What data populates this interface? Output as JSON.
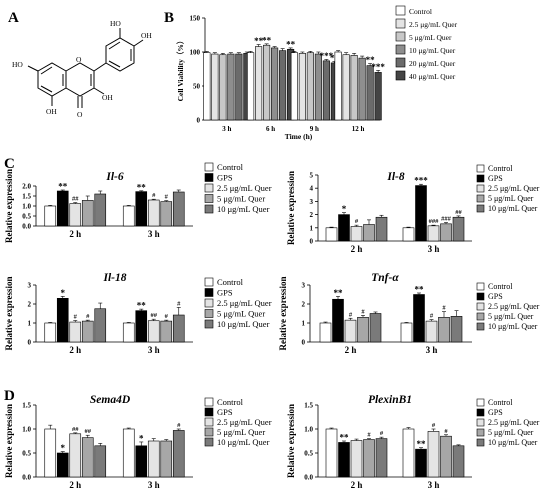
{
  "panel_labels": [
    "A",
    "B",
    "C",
    "D"
  ],
  "structure": {
    "atom_labels": [
      "HO",
      "OH",
      "HO",
      "O",
      "OH",
      "OH",
      "O"
    ]
  },
  "colors": {
    "control": "#ffffff",
    "gps": "#000000",
    "q25": "#e4e4e4",
    "q5": "#c8c8c8",
    "q10": "#8e8e8e",
    "q20": "#6b6b6b",
    "q40": "#444444",
    "q5b": "#a7a7a7",
    "q10b": "#7a7a7a"
  },
  "chart_data": [
    {
      "id": "B",
      "type": "bar",
      "title": "",
      "xlabel": "Time (h)",
      "ylabel": "Cell Viability（%）",
      "ylim": [
        0,
        150
      ],
      "yticks": [
        "0",
        "50",
        "100",
        "150"
      ],
      "categories": [
        "3 h",
        "6 h",
        "9 h",
        "12 h"
      ],
      "series": [
        {
          "name": "Control",
          "color": "control",
          "values": [
            99,
            99,
            99,
            100
          ],
          "errors": [
            2,
            2,
            2,
            2
          ],
          "marks": [
            "",
            "",
            "",
            ""
          ]
        },
        {
          "name": "2.5 μg/mL Quer",
          "color": "q25",
          "values": [
            97,
            108,
            98,
            96
          ],
          "errors": [
            2,
            3,
            2,
            3
          ],
          "marks": [
            "",
            "**",
            "",
            ""
          ]
        },
        {
          "name": "5 μg/mL Quer",
          "color": "q5",
          "values": [
            96,
            110,
            99,
            95
          ],
          "errors": [
            2,
            2,
            2,
            3
          ],
          "marks": [
            "",
            "**",
            "",
            ""
          ]
        },
        {
          "name": "10 μg/mL Quer",
          "color": "q10",
          "values": [
            97,
            106,
            97,
            91
          ],
          "errors": [
            2,
            2,
            3,
            3
          ],
          "marks": [
            "",
            "",
            "",
            ""
          ]
        },
        {
          "name": "20 μg/mL Quer",
          "color": "q20",
          "values": [
            97,
            102,
            87,
            80
          ],
          "errors": [
            2,
            3,
            2,
            3
          ],
          "marks": [
            "",
            "",
            "***",
            "**"
          ]
        },
        {
          "name": "40 μg/mL Quer",
          "color": "q40",
          "values": [
            98,
            104,
            84,
            70
          ],
          "errors": [
            2,
            2,
            2,
            3
          ],
          "marks": [
            "",
            "**",
            "**",
            "***"
          ]
        }
      ],
      "legend": [
        "Control",
        "2.5 μg/mL Quer",
        "5 μg/mL Quer",
        "10 μg/mL Quer",
        "20 μg/mL Quer",
        "40 μg/mL Quer"
      ]
    },
    {
      "id": "C1",
      "type": "bar",
      "title": "Il-6",
      "ylabel": "Relative expression",
      "ylim": [
        0,
        2.0
      ],
      "yticks": [
        "0.0",
        "0.5",
        "1.0",
        "1.5",
        "2.0"
      ],
      "categories": [
        "2 h",
        "3 h"
      ],
      "series": [
        {
          "name": "Control",
          "color": "control",
          "values": [
            1.0,
            1.0
          ],
          "errors": [
            0.03,
            0.03
          ],
          "marks": [
            "",
            ""
          ]
        },
        {
          "name": "GPS",
          "color": "gps",
          "values": [
            1.75,
            1.72
          ],
          "errors": [
            0.05,
            0.04
          ],
          "marks": [
            "**",
            "**"
          ]
        },
        {
          "name": "2.5 μg/mL Quer",
          "color": "q25",
          "values": [
            1.12,
            1.3
          ],
          "errors": [
            0.05,
            0.04
          ],
          "marks": [
            "##",
            "#"
          ]
        },
        {
          "name": "5 μg/mL Quer",
          "color": "q5b",
          "values": [
            1.28,
            1.22
          ],
          "errors": [
            0.22,
            0.05
          ],
          "marks": [
            "",
            "#"
          ]
        },
        {
          "name": "10 μg/mL Quer",
          "color": "q10b",
          "values": [
            1.6,
            1.7
          ],
          "errors": [
            0.15,
            0.1
          ],
          "marks": [
            "",
            ""
          ]
        }
      ],
      "legend": [
        "Control",
        "GPS",
        "2.5 μg/mL Quer",
        "5  μg/mL Quer",
        "10 μg/mL Quer"
      ]
    },
    {
      "id": "C2",
      "type": "bar",
      "title": "Il-8",
      "ylabel": "Relative expression",
      "ylim": [
        0,
        5
      ],
      "yticks": [
        "0",
        "1",
        "2",
        "3",
        "4",
        "5"
      ],
      "categories": [
        "2 h",
        "3 h"
      ],
      "series": [
        {
          "name": "Control",
          "color": "control",
          "values": [
            1.0,
            1.0
          ],
          "errors": [
            0.05,
            0.05
          ],
          "marks": [
            "",
            ""
          ]
        },
        {
          "name": "GPS",
          "color": "gps",
          "values": [
            2.0,
            4.2
          ],
          "errors": [
            0.15,
            0.1
          ],
          "marks": [
            "*",
            "***"
          ]
        },
        {
          "name": "2.5 μg/mL Quer",
          "color": "q25",
          "values": [
            1.1,
            1.15
          ],
          "errors": [
            0.1,
            0.05
          ],
          "marks": [
            "#",
            "###"
          ]
        },
        {
          "name": "5 μg/mL Quer",
          "color": "q5b",
          "values": [
            1.25,
            1.3
          ],
          "errors": [
            0.35,
            0.1
          ],
          "marks": [
            "",
            "###"
          ]
        },
        {
          "name": "10 μg/mL Quer",
          "color": "q10b",
          "values": [
            1.8,
            1.8
          ],
          "errors": [
            0.15,
            0.1
          ],
          "marks": [
            "",
            "##"
          ]
        }
      ],
      "legend": [
        "Control",
        "GPS",
        "2.5 μg/mL Quer",
        "5 μg/mL Quer",
        "10 μg/mL Quer"
      ]
    },
    {
      "id": "C3",
      "type": "bar",
      "title": "Il-18",
      "ylabel": "Relative expression",
      "ylim": [
        0,
        3
      ],
      "yticks": [
        "0",
        "1",
        "2",
        "3"
      ],
      "categories": [
        "2 h",
        "3 h"
      ],
      "series": [
        {
          "name": "Control",
          "color": "control",
          "values": [
            1.0,
            1.0
          ],
          "errors": [
            0.03,
            0.03
          ],
          "marks": [
            "",
            ""
          ]
        },
        {
          "name": "GPS",
          "color": "gps",
          "values": [
            2.3,
            1.65
          ],
          "errors": [
            0.1,
            0.08
          ],
          "marks": [
            "*",
            "**"
          ]
        },
        {
          "name": "2.5 μg/mL Quer",
          "color": "q25",
          "values": [
            1.05,
            1.12
          ],
          "errors": [
            0.08,
            0.08
          ],
          "marks": [
            "#",
            "##"
          ]
        },
        {
          "name": "5 μg/mL Quer",
          "color": "q5b",
          "values": [
            1.1,
            1.1
          ],
          "errors": [
            0.05,
            0.05
          ],
          "marks": [
            "#",
            "#"
          ]
        },
        {
          "name": "10 μg/mL Quer",
          "color": "q10b",
          "values": [
            1.75,
            1.42
          ],
          "errors": [
            0.3,
            0.4
          ],
          "marks": [
            "",
            "#"
          ]
        }
      ],
      "legend": [
        "Control",
        "GPS",
        "2.5 μg/mL Quer",
        "5 μg/mL Quer",
        "10 μg/mL Quer"
      ]
    },
    {
      "id": "C4",
      "type": "bar",
      "title": "Tnf-α",
      "ylabel": "Relative expression",
      "ylim": [
        0,
        3
      ],
      "yticks": [
        "0",
        "1",
        "2",
        "3"
      ],
      "categories": [
        "2 h",
        "3 h"
      ],
      "series": [
        {
          "name": "Control",
          "color": "control",
          "values": [
            1.0,
            1.0
          ],
          "errors": [
            0.05,
            0.03
          ],
          "marks": [
            "",
            ""
          ]
        },
        {
          "name": "GPS",
          "color": "gps",
          "values": [
            2.25,
            2.5
          ],
          "errors": [
            0.15,
            0.08
          ],
          "marks": [
            "**",
            "**"
          ]
        },
        {
          "name": "2.5 μg/mL Quer",
          "color": "q25",
          "values": [
            1.15,
            1.1
          ],
          "errors": [
            0.1,
            0.08
          ],
          "marks": [
            "#",
            "#"
          ]
        },
        {
          "name": "5 μg/mL Quer",
          "color": "q5b",
          "values": [
            1.3,
            1.3
          ],
          "errors": [
            0.1,
            0.3
          ],
          "marks": [
            "#",
            "#"
          ]
        },
        {
          "name": "10 μg/mL Quer",
          "color": "q10b",
          "values": [
            1.5,
            1.35
          ],
          "errors": [
            0.08,
            0.3
          ],
          "marks": [
            "",
            ""
          ]
        }
      ],
      "legend": [
        "Control",
        "GPS",
        "2.5 μg/mL Quer",
        "5 μg/mL Quer",
        "10 μg/mL Quer"
      ]
    },
    {
      "id": "D1",
      "type": "bar",
      "title": "Sema4D",
      "ylabel": "Relative expression",
      "ylim": [
        0,
        1.5
      ],
      "yticks": [
        "0.0",
        "0.5",
        "1.0",
        "1.5"
      ],
      "categories": [
        "2 h",
        "3 h"
      ],
      "series": [
        {
          "name": "Control",
          "color": "control",
          "values": [
            1.0,
            1.0
          ],
          "errors": [
            0.08,
            0.02
          ],
          "marks": [
            "",
            ""
          ]
        },
        {
          "name": "GPS",
          "color": "gps",
          "values": [
            0.5,
            0.65
          ],
          "errors": [
            0.03,
            0.08
          ],
          "marks": [
            "*",
            "*"
          ]
        },
        {
          "name": "2.5 μg/mL Quer",
          "color": "q25",
          "values": [
            0.9,
            0.75
          ],
          "errors": [
            0.02,
            0.05
          ],
          "marks": [
            "##",
            ""
          ]
        },
        {
          "name": "5 μg/mL Quer",
          "color": "q5b",
          "values": [
            0.82,
            0.75
          ],
          "errors": [
            0.05,
            0.03
          ],
          "marks": [
            "##",
            ""
          ]
        },
        {
          "name": "10 μg/mL Quer",
          "color": "q10b",
          "values": [
            0.65,
            0.97
          ],
          "errors": [
            0.05,
            0.03
          ],
          "marks": [
            "",
            "#"
          ]
        }
      ],
      "legend": [
        "Control",
        "GPS",
        "2.5 μg/mL Quer",
        "5 μg/mL Quer",
        "10 μg/mL Quer"
      ]
    },
    {
      "id": "D2",
      "type": "bar",
      "title": "PlexinB1",
      "ylabel": "Relative expression",
      "ylim": [
        0,
        1.5
      ],
      "yticks": [
        "0.0",
        "0.5",
        "1.0",
        "1.5"
      ],
      "categories": [
        "2 h",
        "3 h"
      ],
      "series": [
        {
          "name": "Control",
          "color": "control",
          "values": [
            1.0,
            1.0
          ],
          "errors": [
            0.02,
            0.03
          ],
          "marks": [
            "",
            ""
          ]
        },
        {
          "name": "GPS",
          "color": "gps",
          "values": [
            0.72,
            0.58
          ],
          "errors": [
            0.03,
            0.03
          ],
          "marks": [
            "**",
            "**"
          ]
        },
        {
          "name": "2.5 μg/mL Quer",
          "color": "q25",
          "values": [
            0.76,
            0.95
          ],
          "errors": [
            0.03,
            0.05
          ],
          "marks": [
            "",
            "#"
          ]
        },
        {
          "name": "5 μg/mL Quer",
          "color": "q5b",
          "values": [
            0.78,
            0.85
          ],
          "errors": [
            0.02,
            0.03
          ],
          "marks": [
            "#",
            "#"
          ]
        },
        {
          "name": "10 μg/mL Quer",
          "color": "q10b",
          "values": [
            0.8,
            0.65
          ],
          "errors": [
            0.03,
            0.02
          ],
          "marks": [
            "#",
            ""
          ]
        }
      ],
      "legend": [
        "Control",
        "GPS",
        "2.5 μg/mL Quer",
        "5 μg/mL Quer",
        "10 μg/mL Quer"
      ]
    }
  ]
}
